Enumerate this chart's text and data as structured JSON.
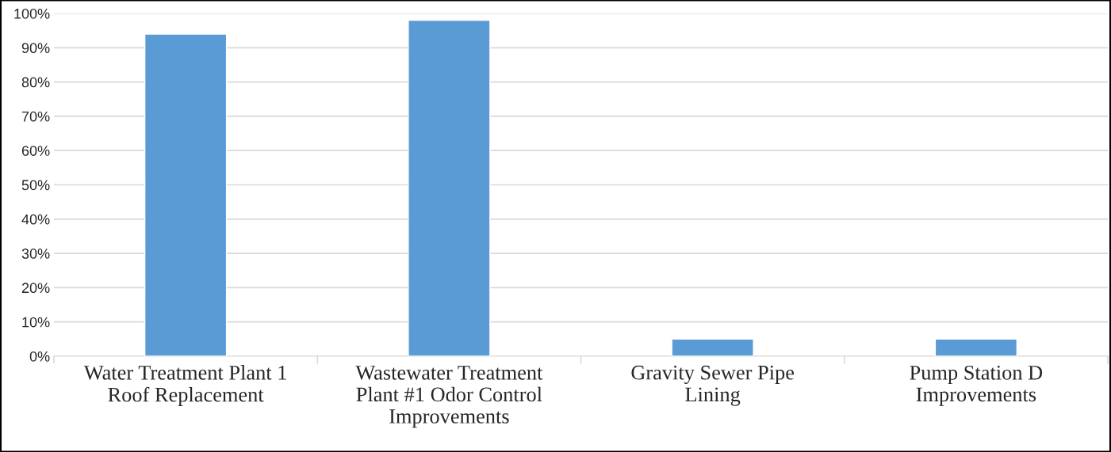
{
  "chart_data": {
    "type": "bar",
    "categories": [
      "Water Treatment Plant 1\nRoof Replacement",
      "Wastewater Treatment\nPlant #1 Odor Control\nImprovements",
      "Gravity Sewer Pipe\nLining",
      "Pump Station D\nImprovements"
    ],
    "values": [
      94,
      98,
      5,
      5
    ],
    "color": "#5b9bd5",
    "ylim": [
      0,
      100
    ],
    "yticks": [
      {
        "value": 0,
        "label": "0%"
      },
      {
        "value": 10,
        "label": "10%"
      },
      {
        "value": 20,
        "label": "20%"
      },
      {
        "value": 30,
        "label": "30%"
      },
      {
        "value": 40,
        "label": "40%"
      },
      {
        "value": 50,
        "label": "50%"
      },
      {
        "value": 60,
        "label": "60%"
      },
      {
        "value": 70,
        "label": "70%"
      },
      {
        "value": 80,
        "label": "80%"
      },
      {
        "value": 90,
        "label": "90%"
      },
      {
        "value": 100,
        "label": "100%"
      }
    ],
    "grid": "y"
  }
}
